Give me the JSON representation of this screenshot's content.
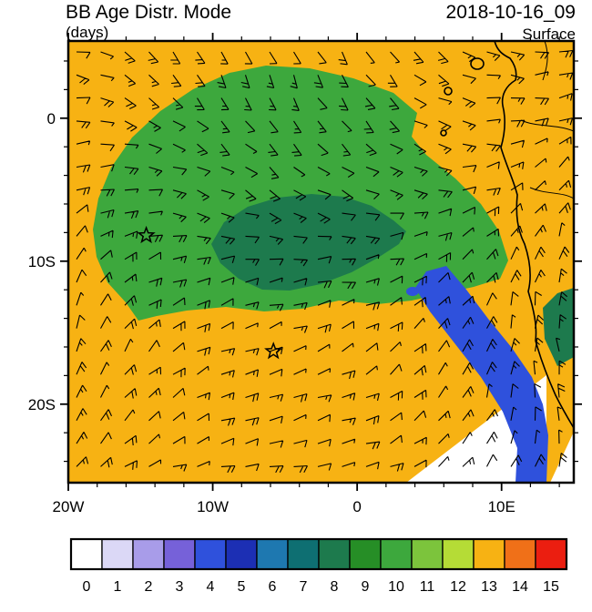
{
  "header": {
    "title_left": "BB Age Distr. Mode",
    "subtitle_left": "(days)",
    "title_right": "2018-10-16_09",
    "subtitle_right": "Surface"
  },
  "chart_data": {
    "type": "heatmap",
    "title": "BB Age Distr. Mode",
    "units": "days",
    "valid_time": "2018-10-16_09",
    "level": "Surface",
    "extent": {
      "lon_min": -20,
      "lon_max": 15,
      "lat_min": -25.5,
      "lat_max": 5.4
    },
    "x_axis": {
      "tick_labels": [
        "20W",
        "10W",
        "0",
        "10E"
      ],
      "tick_lons": [
        -20,
        -10,
        0,
        10
      ],
      "minor_step_deg": 2
    },
    "y_axis": {
      "tick_labels": [
        "0",
        "10S",
        "20S"
      ],
      "tick_lats": [
        0,
        -10,
        -20
      ],
      "minor_step_deg": 2
    },
    "colorbar": {
      "labels": [
        "0",
        "1",
        "2",
        "3",
        "4",
        "5",
        "6",
        "7",
        "8",
        "9",
        "10",
        "11",
        "12",
        "13",
        "14",
        "15"
      ],
      "colors": [
        "#FFFFFF",
        "#DBD8F6",
        "#A89CE9",
        "#7661D9",
        "#2F51DC",
        "#1C2FB4",
        "#1E78B0",
        "#0E6F72",
        "#1D7A4D",
        "#268E26",
        "#3DA83D",
        "#7CC43C",
        "#B5DC36",
        "#F7B213",
        "#F07018",
        "#EB1E10"
      ]
    },
    "field_regions": [
      {
        "id": "background",
        "label": "mode age 13 days (background)",
        "value": 13
      },
      {
        "id": "main_green",
        "label": "mode age 10 days",
        "value": 10
      },
      {
        "id": "inner_dark_green",
        "label": "mode age 8 days",
        "value": 8
      },
      {
        "id": "coastal_teal",
        "label": "mode age 8 days (coastal)",
        "value": 8
      },
      {
        "id": "white_wedge",
        "label": "mode age 0 days",
        "value": 0
      },
      {
        "id": "blue_band",
        "label": "mode age 4 days",
        "value": 4
      },
      {
        "id": "blue_speck",
        "label": "mode age 4 days (speck)",
        "value": 4
      },
      {
        "id": "white_corner",
        "label": "mode age 0 days",
        "value": 0
      }
    ],
    "markers": [
      {
        "type": "star",
        "lon": -14.6,
        "lat": -8.2
      },
      {
        "type": "star",
        "lon": -5.8,
        "lat": -16.3
      }
    ],
    "overlay": "wind-barbs"
  }
}
